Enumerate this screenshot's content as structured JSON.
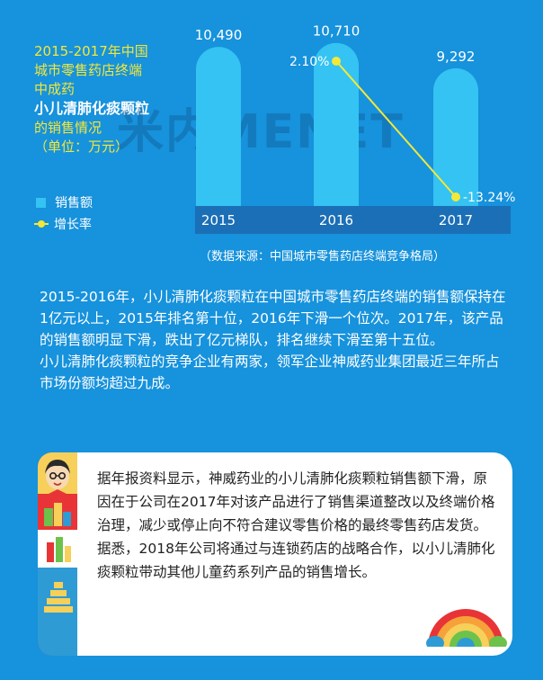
{
  "side_title": {
    "line1": "2015-2017年中国",
    "line2": "城市零售药店终端",
    "line3": "中成药",
    "product": "小儿清肺化痰颗粒",
    "line5": "的销售情况",
    "unit": "（单位：万元）"
  },
  "legend": {
    "sales": "销售额",
    "growth": "增长率"
  },
  "watermark": "米内MENET",
  "source": "（数据来源：中国城市零售药店终端竞争格局）",
  "chart_data": {
    "type": "bar",
    "categories": [
      "2015",
      "2016",
      "2017"
    ],
    "series": [
      {
        "name": "销售额",
        "values": [
          10490,
          10710,
          9292
        ],
        "labels": [
          "10,490",
          "10,710",
          "9,292"
        ]
      },
      {
        "name": "增长率",
        "type": "line",
        "values": [
          null,
          2.1,
          -13.24
        ],
        "labels": [
          "",
          "2.10%",
          "-13.24%"
        ]
      }
    ],
    "colors": {
      "bar": "#34c3f2",
      "line": "#f3e83a",
      "axis_band": "#1b6fb6"
    },
    "ylim": [
      0,
      11000
    ]
  },
  "paragraphs": [
    "2015-2016年，小儿清肺化痰颗粒在中国城市零售药店终端的销售额保持在1亿元以上，2015年排名第十位，2016年下滑一个位次。2017年，该产品的销售额明显下滑，跌出了亿元梯队，排名继续下滑至第十五位。",
    "小儿清肺化痰颗粒的竞争企业有两家，领军企业神威药业集团最近三年所占市场份额均超过九成。"
  ],
  "card_text": "据年报资料显示，神威药业的小儿清肺化痰颗粒销售额下滑，原因在于公司在2017年对该产品进行了销售渠道整改以及终端价格治理，减少或停止向不符合建议零售价格的最终零售药店发货。据悉，2018年公司将通过与连锁药店的战略合作，以小儿清肺化痰颗粒带动其他儿童药系列产品的销售增长。"
}
